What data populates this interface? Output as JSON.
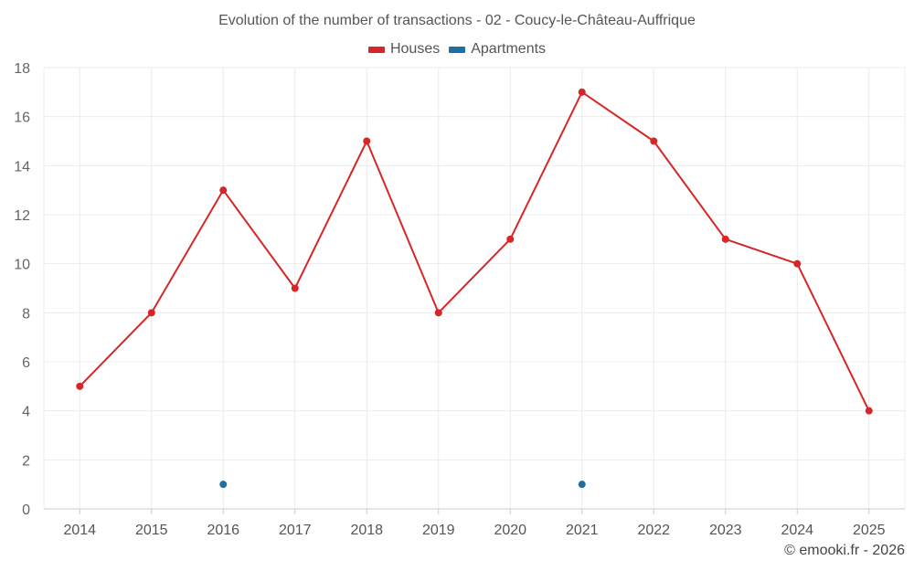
{
  "chart_data": {
    "type": "line",
    "title": "Evolution of the number of transactions - 02 - Coucy-le-Château-Auffrique",
    "categories": [
      "2014",
      "2015",
      "2016",
      "2017",
      "2018",
      "2019",
      "2020",
      "2021",
      "2022",
      "2023",
      "2024",
      "2025"
    ],
    "series": [
      {
        "name": "Houses",
        "color": "#d62728",
        "values": [
          5,
          8,
          13,
          9,
          15,
          8,
          11,
          17,
          15,
          11,
          10,
          4
        ]
      },
      {
        "name": "Apartments",
        "color": "#1f6fa3",
        "values": [
          null,
          null,
          1,
          null,
          null,
          null,
          null,
          1,
          null,
          null,
          null,
          null
        ]
      }
    ],
    "ylim": [
      0,
      18
    ],
    "yticks": [
      0,
      2,
      4,
      6,
      8,
      10,
      12,
      14,
      16,
      18
    ],
    "grid": true,
    "legend": "top-center",
    "xlabel": "",
    "ylabel": ""
  },
  "credit": "© emooki.fr - 2026"
}
